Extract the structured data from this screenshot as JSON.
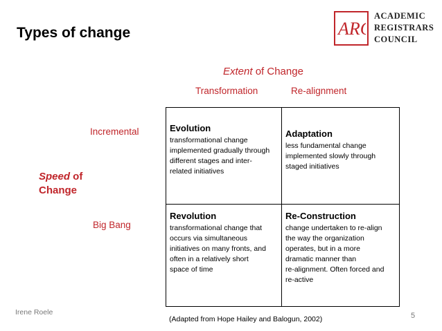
{
  "slide": {
    "title": "Types of change",
    "footer_left": "Irene Roele",
    "citation": "(Adapted from Hope Hailey and Balogun, 2002)",
    "page_number": "5"
  },
  "logo": {
    "lines": [
      "ACADEMIC",
      "REGISTRARS",
      "COUNCIL"
    ],
    "mark_text": "ARC",
    "color": "#c0252a"
  },
  "axes": {
    "extent_emphasis": "Extent",
    "extent_rest": " of Change",
    "columns": [
      "Transformation",
      "Re-alignment"
    ],
    "rows": [
      "Incremental",
      "Big Bang"
    ],
    "speed_emphasis": "Speed",
    "speed_rest": " of",
    "speed_line2": "Change",
    "accent_color": "#c0252a"
  },
  "matrix": {
    "evolution": {
      "title": "Evolution",
      "text": "transformational change\nimplemented gradually through\ndifferent stages and inter-\nrelated initiatives"
    },
    "adaptation": {
      "title": "Adaptation",
      "text": "less fundamental change\nimplemented slowly through\nstaged initiatives"
    },
    "revolution": {
      "title": "Revolution",
      "text": "transformational change that\noccurs via simultaneous\ninitiatives on many fronts, and\noften in a relatively short\n space of time"
    },
    "reconstruction": {
      "title": "Re-Construction",
      "text": "change undertaken to re-align\nthe way the organization\noperates, but in a more\ndramatic manner than\nre-alignment. Often forced and\nre-active"
    }
  }
}
